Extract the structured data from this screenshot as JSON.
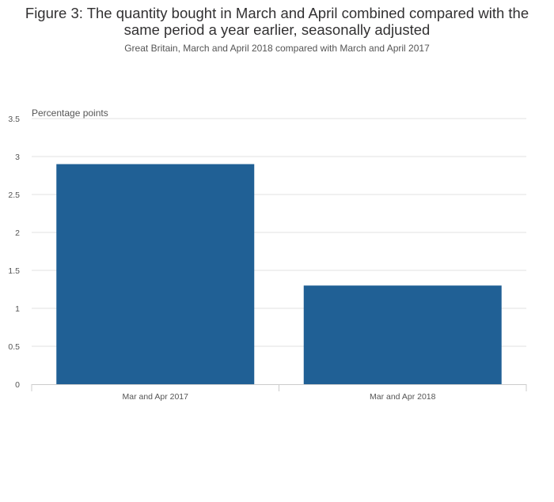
{
  "chart_data": {
    "type": "bar",
    "title": "Figure 3: The quantity bought in March and April combined compared with the same period a year earlier, seasonally adjusted",
    "subtitle": "Great Britain, March and April 2018 compared with March and April 2017",
    "xlabel": "",
    "ylabel": "Percentage points",
    "categories": [
      "Mar and Apr 2017",
      "Mar and Apr 2018"
    ],
    "values": [
      2.9,
      1.3
    ],
    "ylim": [
      0,
      3.5
    ],
    "yticks": [
      "0",
      "0.5",
      "1",
      "1.5",
      "2",
      "2.5",
      "3",
      "3.5"
    ],
    "grid": true,
    "legend": "none"
  },
  "colors": {
    "bar": "#206095",
    "grid": "#e2e2e2",
    "axis": "#cccccc"
  }
}
